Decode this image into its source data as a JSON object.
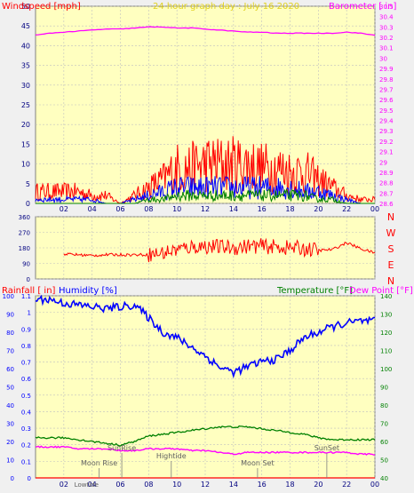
{
  "title": "24 hour graph day : July 16 2020",
  "colors": {
    "wind": "#ff0000",
    "gust_avg": "#0000ff",
    "min": "#008000",
    "barometer": "#ff00ff",
    "humidity": "#0000ff",
    "temperature": "#008000",
    "dewpoint": "#ff00ff",
    "rain": "#ff0000",
    "plot_bg": "#ffffc0",
    "grid": "#c0c0c0"
  },
  "x_ticks": [
    "02",
    "04",
    "06",
    "08",
    "10",
    "12",
    "14",
    "16",
    "18",
    "20",
    "22",
    "00"
  ],
  "panel_top": {
    "left_label": "Windspeed [mph]",
    "right_label": "Barometer [ in]",
    "left_ticks": [
      "0",
      "5",
      "10",
      "15",
      "20",
      "25",
      "30",
      "35",
      "40",
      "45",
      "50"
    ],
    "right_ticks": [
      "28.6",
      "28.7",
      "28.8",
      "28.9",
      "29",
      "29.1",
      "29.2",
      "29.3",
      "29.4",
      "29.5",
      "29.6",
      "29.7",
      "29.8",
      "29.9",
      "30",
      "30.1",
      "30.2",
      "30.3",
      "30.4",
      "30.5"
    ]
  },
  "panel_mid": {
    "left_ticks": [
      "0",
      "90",
      "180",
      "270",
      "360"
    ],
    "compass": [
      "N",
      "W",
      "S",
      "E",
      "N"
    ]
  },
  "panel_bot": {
    "rain_label": "Rainfall [ in]",
    "humidity_label": "Humidity [%]",
    "temp_label": "Temperature [°F]",
    "dew_label": "Dew Point [°F]",
    "humidity_ticks": [
      "0",
      "10",
      "20",
      "30",
      "40",
      "50",
      "60",
      "70",
      "80",
      "90",
      "100"
    ],
    "rain_ticks": [
      "0",
      "0.1",
      "0.2",
      "0.3",
      "0.4",
      "0.5",
      "0.6",
      "0.7",
      "0.8",
      "0.9",
      "1",
      "1.1"
    ],
    "temp_ticks": [
      "40",
      "50",
      "60",
      "70",
      "80",
      "90",
      "100",
      "110",
      "120",
      "130",
      "140"
    ],
    "events": [
      {
        "label": "Moon Rise",
        "hour": 4.5,
        "row": 2
      },
      {
        "label": "SunRise",
        "hour": 6.1,
        "row": 0
      },
      {
        "label": "Hightide",
        "hour": 9.6,
        "row": 1
      },
      {
        "label": "Moon Set",
        "hour": 15.7,
        "row": 2
      },
      {
        "label": "SunSet",
        "hour": 20.6,
        "row": 0
      }
    ],
    "lowtide_label": "Lowtide",
    "lowtide_hour": 3.6
  },
  "chart_data": [
    {
      "type": "line",
      "title": "24 hour graph day : July 16 2020",
      "xlabel": "hour",
      "x": [
        0,
        1,
        2,
        3,
        4,
        5,
        6,
        7,
        8,
        9,
        10,
        11,
        12,
        13,
        14,
        15,
        16,
        17,
        18,
        19,
        20,
        21,
        22,
        23,
        24
      ],
      "series": [
        {
          "name": "Windspeed [mph] gust",
          "axis": "left",
          "values": [
            3,
            3,
            3,
            3,
            2,
            2,
            0,
            2,
            4,
            6,
            9,
            9,
            10,
            10,
            10,
            10,
            9,
            9,
            8,
            8,
            6,
            4,
            2,
            1,
            1
          ]
        },
        {
          "name": "Windspeed [mph] avg",
          "axis": "left",
          "values": [
            1,
            1,
            1,
            1,
            1,
            0,
            0,
            1,
            2,
            3,
            4,
            4,
            4,
            4,
            4,
            4,
            4,
            4,
            4,
            3,
            3,
            2,
            1,
            0,
            0
          ]
        },
        {
          "name": "Windspeed [mph] low",
          "axis": "left",
          "values": [
            0,
            0,
            0,
            0,
            0,
            0,
            0,
            0,
            1,
            1,
            2,
            2,
            2,
            2,
            2,
            2,
            2,
            2,
            2,
            2,
            1,
            1,
            0,
            0,
            0
          ]
        },
        {
          "name": "Barometer [ in]",
          "axis": "right",
          "values": [
            30.22,
            30.24,
            30.25,
            30.26,
            30.27,
            30.28,
            30.28,
            30.29,
            30.3,
            30.3,
            30.29,
            30.29,
            30.28,
            30.27,
            30.26,
            30.25,
            30.25,
            30.24,
            30.24,
            30.24,
            30.24,
            30.24,
            30.25,
            30.24,
            30.22
          ]
        }
      ],
      "ylim_left": [
        0,
        50
      ],
      "ylim_right": [
        28.6,
        30.5
      ]
    },
    {
      "type": "scatter",
      "ylabel": "Wind direction",
      "x": [
        0,
        1,
        2,
        3,
        4,
        5,
        6,
        7,
        8,
        9,
        10,
        11,
        12,
        13,
        14,
        15,
        16,
        17,
        18,
        19,
        20,
        21,
        22,
        23,
        24
      ],
      "series": [
        {
          "name": "Wind direction",
          "values": [
            180,
            180,
            145,
            140,
            135,
            140,
            140,
            140,
            140,
            150,
            170,
            185,
            190,
            185,
            180,
            190,
            190,
            185,
            180,
            175,
            165,
            170,
            210,
            175,
            150
          ]
        }
      ],
      "ylim": [
        0,
        360
      ]
    },
    {
      "type": "line",
      "x": [
        0,
        1,
        2,
        3,
        4,
        5,
        6,
        7,
        8,
        9,
        10,
        11,
        12,
        13,
        14,
        15,
        16,
        17,
        18,
        19,
        20,
        21,
        22,
        23,
        24
      ],
      "series": [
        {
          "name": "Humidity [%]",
          "axis": "humidity",
          "values": [
            98,
            98,
            96,
            95,
            94,
            93,
            94,
            95,
            88,
            80,
            77,
            72,
            67,
            61,
            58,
            61,
            64,
            65,
            70,
            77,
            80,
            83,
            85,
            86,
            86
          ]
        },
        {
          "name": "Temperature [°F]",
          "axis": "temp",
          "values": [
            62,
            62,
            62,
            61,
            60,
            59,
            58,
            60,
            63,
            64,
            65,
            66,
            67,
            68,
            68,
            68,
            67,
            66,
            65,
            64,
            62,
            61,
            61,
            61,
            61
          ]
        },
        {
          "name": "Dew Point [°F]",
          "axis": "temp",
          "values": [
            57,
            57,
            57,
            56,
            56,
            56,
            55,
            55,
            56,
            56,
            56,
            55,
            55,
            54,
            53,
            54,
            54,
            54,
            54,
            54,
            54,
            54,
            54,
            53,
            53
          ]
        },
        {
          "name": "Rainfall [ in]",
          "axis": "rain",
          "values": [
            0,
            0,
            0,
            0,
            0,
            0,
            0,
            0,
            0,
            0,
            0,
            0,
            0,
            0,
            0,
            0,
            0,
            0,
            0,
            0,
            0,
            0,
            0,
            0,
            0
          ]
        }
      ],
      "ylim_humidity": [
        0,
        100
      ],
      "ylim_rain": [
        0,
        1.1
      ],
      "ylim_temp": [
        40,
        140
      ]
    }
  ]
}
